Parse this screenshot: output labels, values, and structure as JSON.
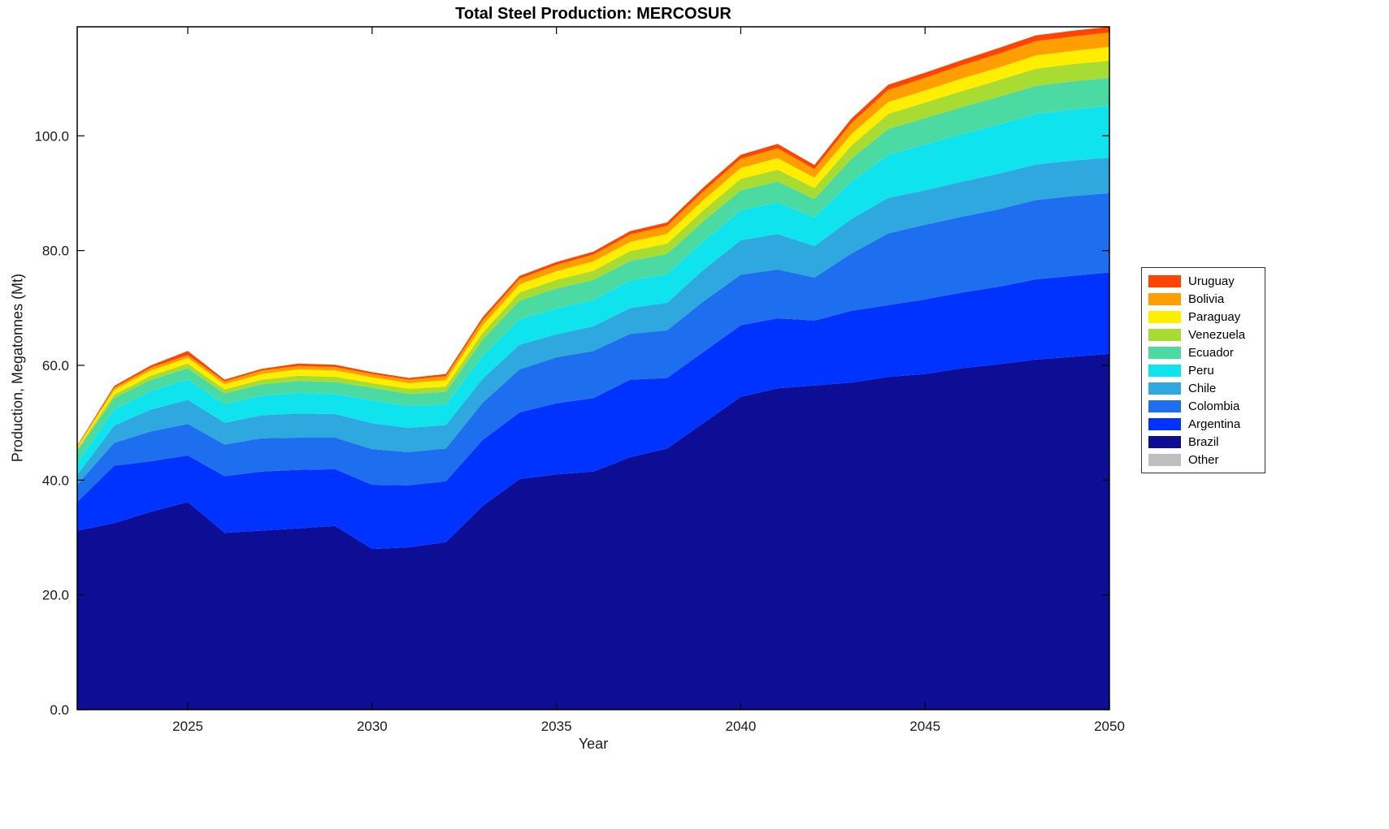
{
  "chart_data": {
    "type": "area",
    "stacked": true,
    "title": "Total Steel Production: MERCOSUR",
    "xlabel": "Year",
    "ylabel": "Production, Megatonnes (Mt)",
    "x": [
      2022,
      2023,
      2024,
      2025,
      2026,
      2027,
      2028,
      2029,
      2030,
      2031,
      2032,
      2033,
      2034,
      2035,
      2036,
      2037,
      2038,
      2039,
      2040,
      2041,
      2042,
      2043,
      2044,
      2045,
      2046,
      2047,
      2048,
      2049,
      2050
    ],
    "xlim": [
      2022,
      2050
    ],
    "ylim": [
      0,
      119
    ],
    "x_ticks": [
      2025,
      2030,
      2035,
      2040,
      2045,
      2050
    ],
    "y_ticks": [
      0,
      20,
      40,
      60,
      80,
      100
    ],
    "y_tick_labels": [
      "0.0",
      "20.0",
      "40.0",
      "60.0",
      "80.0",
      "100.0"
    ],
    "grid": false,
    "legend_position": "right-outside",
    "series": [
      {
        "name": "Brazil",
        "color": "#0D0D96",
        "values": [
          31.2,
          32.5,
          34.5,
          36.2,
          30.8,
          31.2,
          31.6,
          32.0,
          28.0,
          28.3,
          29.2,
          35.5,
          40.2,
          41.0,
          41.5,
          44.0,
          45.5,
          50.0,
          54.5,
          56.0,
          56.5,
          57.0,
          58.0,
          58.5,
          59.5,
          60.2,
          61.0,
          61.5,
          62.0
        ]
      },
      {
        "name": "Argentina",
        "color": "#0033FF",
        "values": [
          5.0,
          10.0,
          8.8,
          8.1,
          9.9,
          10.3,
          10.2,
          9.9,
          11.2,
          10.8,
          10.6,
          11.5,
          11.6,
          12.4,
          12.8,
          13.5,
          12.3,
          12.4,
          12.5,
          12.2,
          11.3,
          12.5,
          12.5,
          13.0,
          13.2,
          13.5,
          14.0,
          14.1,
          14.2
        ]
      },
      {
        "name": "Colombia",
        "color": "#1D6FF0",
        "values": [
          3.0,
          4.0,
          5.2,
          5.5,
          5.5,
          5.8,
          5.6,
          5.5,
          6.2,
          5.8,
          5.7,
          6.5,
          7.5,
          8.0,
          8.2,
          8.0,
          8.3,
          8.8,
          8.8,
          8.5,
          7.5,
          10.0,
          12.5,
          13.0,
          13.2,
          13.5,
          13.8,
          13.9,
          13.8
        ]
      },
      {
        "name": "Chile",
        "color": "#2FA8E0",
        "values": [
          1.7,
          3.0,
          3.8,
          4.2,
          3.8,
          4.0,
          4.2,
          4.1,
          4.5,
          4.2,
          4.1,
          4.2,
          4.3,
          4.0,
          4.3,
          4.5,
          4.8,
          5.5,
          6.0,
          6.2,
          5.5,
          6.0,
          6.2,
          6.0,
          6.1,
          6.2,
          6.2,
          6.2,
          6.2
        ]
      },
      {
        "name": "Peru",
        "color": "#0FE3EE",
        "values": [
          2.1,
          2.8,
          3.2,
          3.5,
          3.2,
          3.4,
          3.6,
          3.5,
          4.0,
          3.8,
          3.6,
          4.0,
          4.4,
          4.5,
          4.6,
          4.8,
          5.0,
          5.0,
          5.2,
          5.5,
          5.0,
          6.5,
          7.5,
          8.0,
          8.3,
          8.6,
          8.8,
          8.9,
          9.0
        ]
      },
      {
        "name": "Ecuador",
        "color": "#4BDBA2",
        "values": [
          2.1,
          2.0,
          2.0,
          2.0,
          1.9,
          2.0,
          2.1,
          2.1,
          2.2,
          2.1,
          2.2,
          2.8,
          3.3,
          3.5,
          3.5,
          3.4,
          3.5,
          3.5,
          3.5,
          3.6,
          3.2,
          4.0,
          4.5,
          4.6,
          4.7,
          4.8,
          4.9,
          4.9,
          4.9
        ]
      },
      {
        "name": "Venezuela",
        "color": "#A8DC32",
        "values": [
          0.3,
          0.6,
          0.7,
          0.8,
          0.7,
          0.8,
          0.9,
          0.9,
          0.8,
          0.9,
          0.9,
          1.2,
          1.4,
          1.5,
          1.6,
          1.7,
          1.8,
          1.9,
          2.0,
          2.1,
          1.9,
          2.3,
          2.6,
          2.7,
          2.8,
          2.9,
          3.0,
          3.0,
          3.0
        ]
      },
      {
        "name": "Paraguay",
        "color": "#FFEE00",
        "values": [
          0.3,
          0.8,
          0.9,
          1.0,
          0.9,
          1.0,
          1.1,
          1.1,
          1.0,
          1.0,
          1.1,
          1.3,
          1.4,
          1.5,
          1.6,
          1.6,
          1.7,
          1.8,
          1.9,
          2.0,
          1.8,
          2.0,
          2.1,
          2.1,
          2.2,
          2.2,
          2.3,
          2.3,
          2.4
        ]
      },
      {
        "name": "Bolivia",
        "color": "#FF9E00",
        "values": [
          0.2,
          0.4,
          0.5,
          0.5,
          0.5,
          0.6,
          0.6,
          0.6,
          0.6,
          0.6,
          0.7,
          0.9,
          1.0,
          1.1,
          1.2,
          1.3,
          1.4,
          1.5,
          1.6,
          1.7,
          1.5,
          1.9,
          2.1,
          2.2,
          2.3,
          2.4,
          2.5,
          2.5,
          2.5
        ]
      },
      {
        "name": "Uruguay",
        "color": "#FF4400",
        "values": [
          0.1,
          0.3,
          0.4,
          0.7,
          0.3,
          0.3,
          0.4,
          0.4,
          0.3,
          0.3,
          0.4,
          0.5,
          0.5,
          0.5,
          0.5,
          0.6,
          0.6,
          0.7,
          0.7,
          0.8,
          0.7,
          0.8,
          0.9,
          0.9,
          0.9,
          1.0,
          1.0,
          1.0,
          1.0
        ]
      },
      {
        "name": "Other",
        "color": "#BFBFBF",
        "values": [
          0,
          0,
          0,
          0,
          0,
          0,
          0,
          0,
          0,
          0,
          0,
          0,
          0,
          0,
          0,
          0,
          0,
          0,
          0,
          0,
          0,
          0,
          0,
          0,
          0,
          0,
          0,
          0,
          0
        ]
      }
    ]
  },
  "legend": {
    "entries": [
      {
        "label": "Uruguay",
        "color": "#FF4400"
      },
      {
        "label": "Bolivia",
        "color": "#FF9E00"
      },
      {
        "label": "Paraguay",
        "color": "#FFEE00"
      },
      {
        "label": "Venezuela",
        "color": "#A8DC32"
      },
      {
        "label": "Ecuador",
        "color": "#4BDBA2"
      },
      {
        "label": "Peru",
        "color": "#0FE3EE"
      },
      {
        "label": "Chile",
        "color": "#2FA8E0"
      },
      {
        "label": "Colombia",
        "color": "#1D6FF0"
      },
      {
        "label": "Argentina",
        "color": "#0033FF"
      },
      {
        "label": "Brazil",
        "color": "#0D0D96"
      },
      {
        "label": "Other",
        "color": "#BFBFBF"
      }
    ]
  }
}
